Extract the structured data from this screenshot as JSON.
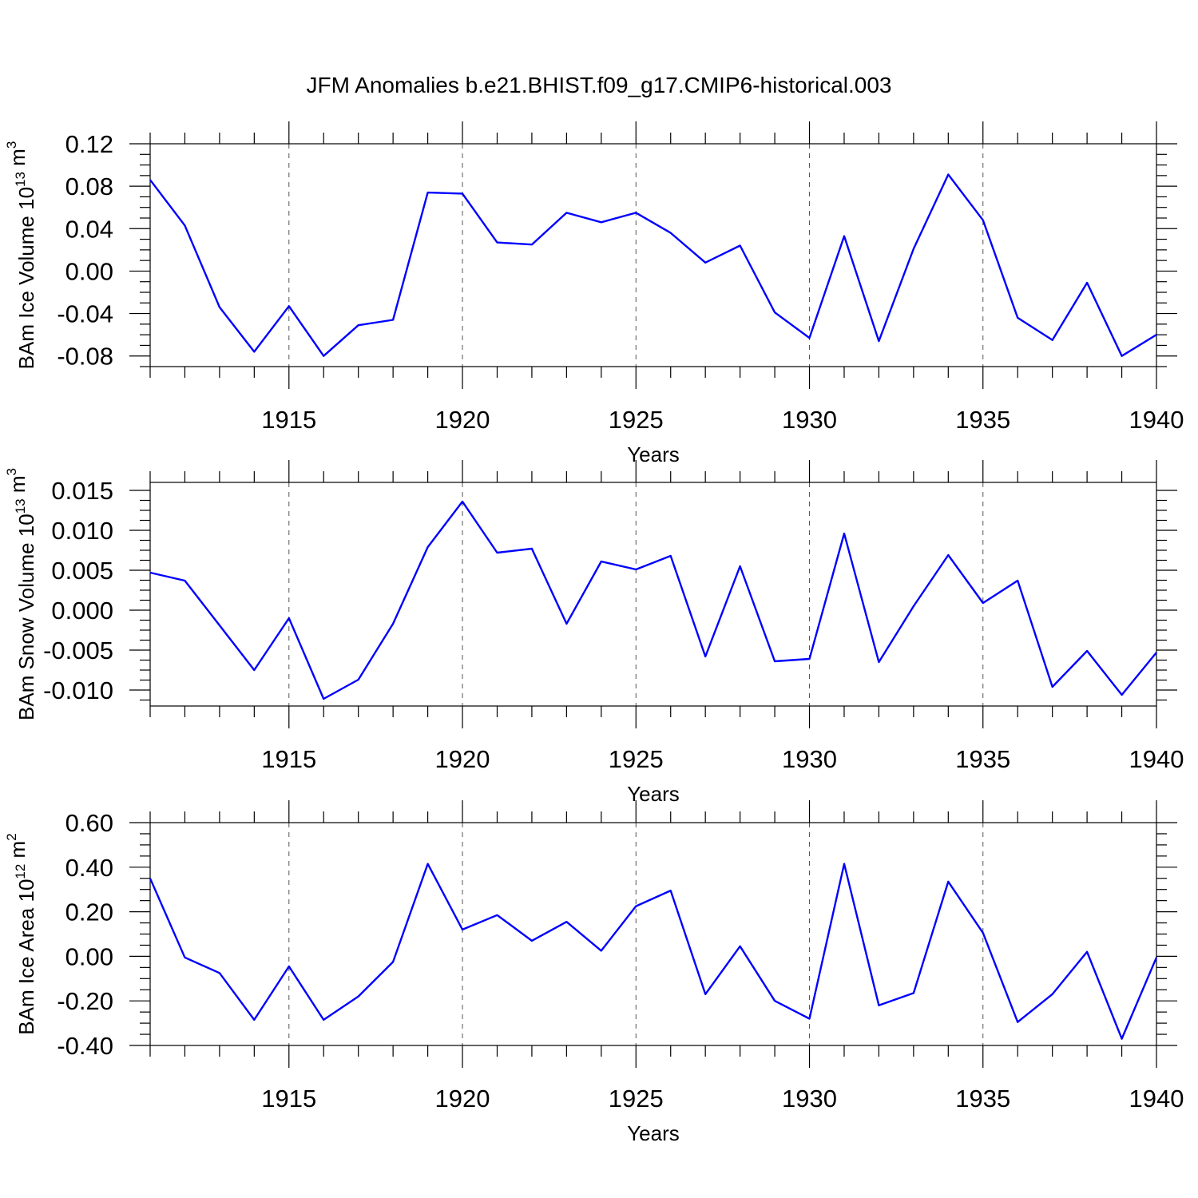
{
  "chart_data": [
    {
      "type": "line",
      "title": "JFM Anomalies b.e21.BHIST.f09_g17.CMIP6-historical.003",
      "xlabel": "Years",
      "ylabel": "BAm Ice Volume 10",
      "ylabel_exp": "13",
      "ylabel_unit": "m",
      "ylabel_unit_exp": "3",
      "xlim": [
        1911,
        1940
      ],
      "ylim": [
        -0.09,
        0.12
      ],
      "x_ticks": [
        1915,
        1920,
        1925,
        1930,
        1935,
        1940
      ],
      "y_ticks": [
        -0.08,
        -0.04,
        0.0,
        0.04,
        0.08,
        0.12
      ],
      "y_tick_labels": [
        "-0.08",
        "-0.04",
        "0.00",
        "0.04",
        "0.08",
        "0.12"
      ],
      "grid": "vertical dashed at major x ticks",
      "color": "#0000ff",
      "x": [
        1911,
        1912,
        1913,
        1914,
        1915,
        1916,
        1917,
        1918,
        1919,
        1920,
        1921,
        1922,
        1923,
        1924,
        1925,
        1926,
        1927,
        1928,
        1929,
        1930,
        1931,
        1932,
        1933,
        1934,
        1935,
        1936,
        1937,
        1938,
        1939,
        1940
      ],
      "values": [
        0.086,
        0.043,
        -0.034,
        -0.076,
        -0.033,
        -0.08,
        -0.051,
        -0.046,
        0.074,
        0.073,
        0.027,
        0.025,
        0.055,
        0.046,
        0.055,
        0.036,
        0.008,
        0.024,
        -0.039,
        -0.063,
        0.033,
        -0.066,
        0.021,
        0.091,
        0.048,
        -0.044,
        -0.065,
        -0.011,
        -0.08,
        -0.06
      ]
    },
    {
      "type": "line",
      "xlabel": "Years",
      "ylabel": "BAm Snow Volume 10",
      "ylabel_exp": "13",
      "ylabel_unit": "m",
      "ylabel_unit_exp": "3",
      "xlim": [
        1911,
        1940
      ],
      "ylim": [
        -0.012,
        0.016
      ],
      "x_ticks": [
        1915,
        1920,
        1925,
        1930,
        1935,
        1940
      ],
      "y_ticks": [
        -0.01,
        -0.005,
        0.0,
        0.005,
        0.01,
        0.015
      ],
      "y_tick_labels": [
        "-0.010",
        "-0.005",
        "0.000",
        "0.005",
        "0.010",
        "0.015"
      ],
      "grid": "vertical dashed at major x ticks",
      "color": "#0000ff",
      "x": [
        1911,
        1912,
        1913,
        1914,
        1915,
        1916,
        1917,
        1918,
        1919,
        1920,
        1921,
        1922,
        1923,
        1924,
        1925,
        1926,
        1927,
        1928,
        1929,
        1930,
        1931,
        1932,
        1933,
        1934,
        1935,
        1936,
        1937,
        1938,
        1939,
        1940
      ],
      "values": [
        0.0047,
        0.0037,
        -0.0019,
        -0.0075,
        -0.001,
        -0.0111,
        -0.0087,
        -0.0017,
        0.0079,
        0.0136,
        0.0072,
        0.0077,
        -0.0017,
        0.0061,
        0.0051,
        0.0068,
        -0.0058,
        0.0055,
        -0.0064,
        -0.0061,
        0.0096,
        -0.0065,
        0.0005,
        0.0069,
        0.0009,
        0.0037,
        -0.0096,
        -0.0051,
        -0.0106,
        -0.0053
      ]
    },
    {
      "type": "line",
      "xlabel": "Years",
      "ylabel": "BAm Ice Area 10",
      "ylabel_exp": "12",
      "ylabel_unit": "m",
      "ylabel_unit_exp": "2",
      "xlim": [
        1911,
        1940
      ],
      "ylim": [
        -0.4,
        0.6
      ],
      "x_ticks": [
        1915,
        1920,
        1925,
        1930,
        1935,
        1940
      ],
      "y_ticks": [
        -0.4,
        -0.2,
        0.0,
        0.2,
        0.4,
        0.6
      ],
      "y_tick_labels": [
        "-0.40",
        "-0.20",
        "0.00",
        "0.20",
        "0.40",
        "0.60"
      ],
      "grid": "vertical dashed at major x ticks",
      "color": "#0000ff",
      "x": [
        1911,
        1912,
        1913,
        1914,
        1915,
        1916,
        1917,
        1918,
        1919,
        1920,
        1921,
        1922,
        1923,
        1924,
        1925,
        1926,
        1927,
        1928,
        1929,
        1930,
        1931,
        1932,
        1933,
        1934,
        1935,
        1936,
        1937,
        1938,
        1939,
        1940
      ],
      "values": [
        0.35,
        -0.005,
        -0.075,
        -0.285,
        -0.045,
        -0.285,
        -0.18,
        -0.025,
        0.415,
        0.12,
        0.185,
        0.07,
        0.155,
        0.025,
        0.225,
        0.295,
        -0.17,
        0.045,
        -0.2,
        -0.28,
        0.415,
        -0.22,
        -0.165,
        0.335,
        0.105,
        -0.295,
        -0.17,
        0.02,
        -0.37,
        -0.005
      ]
    }
  ]
}
